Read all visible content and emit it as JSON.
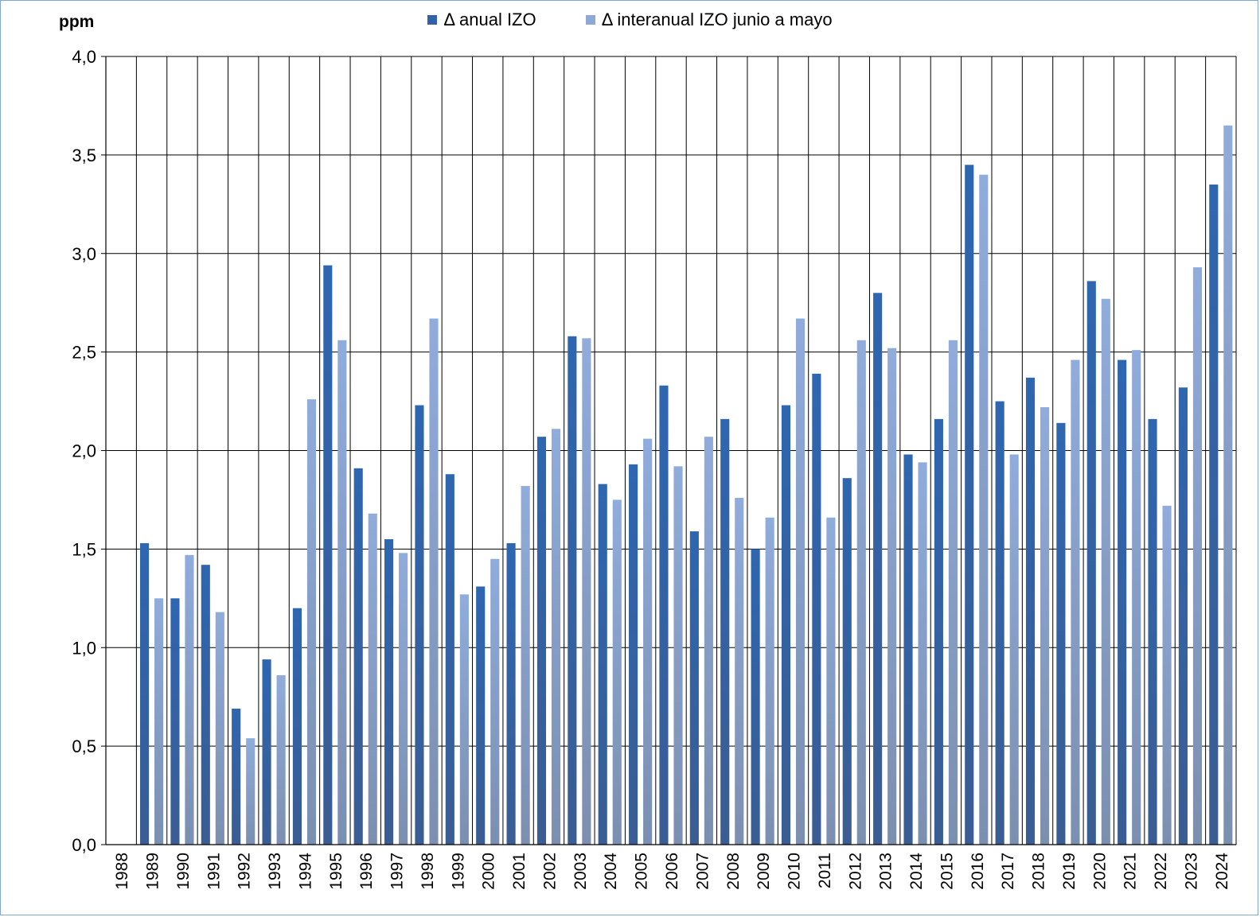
{
  "chart_data": {
    "type": "bar",
    "ylabel": "ppm",
    "ylim": [
      0,
      4
    ],
    "yticks": [
      "0,0",
      "0,5",
      "1,0",
      "1,5",
      "2,0",
      "2,5",
      "3,0",
      "3,5",
      "4,0"
    ],
    "categories": [
      "1988",
      "1989",
      "1990",
      "1991",
      "1992",
      "1993",
      "1994",
      "1995",
      "1996",
      "1997",
      "1998",
      "1999",
      "2000",
      "2001",
      "2002",
      "2003",
      "2004",
      "2005",
      "2006",
      "2007",
      "2008",
      "2009",
      "2010",
      "2011",
      "2012",
      "2013",
      "2014",
      "2015",
      "2016",
      "2017",
      "2018",
      "2019",
      "2020",
      "2021",
      "2022",
      "2023",
      "2024"
    ],
    "series": [
      {
        "name": "Δ anual IZO",
        "color": "#2f62a8",
        "values": [
          0,
          1.53,
          1.25,
          1.42,
          0.69,
          0.94,
          1.2,
          2.94,
          1.91,
          1.55,
          2.23,
          1.88,
          1.31,
          1.53,
          2.07,
          2.58,
          1.83,
          1.93,
          2.33,
          1.59,
          2.16,
          1.5,
          2.23,
          2.39,
          1.86,
          2.8,
          1.98,
          2.16,
          3.45,
          2.25,
          2.37,
          2.14,
          2.86,
          2.46,
          2.16,
          2.32,
          3.35
        ]
      },
      {
        "name": "Δ interanual IZO junio a mayo",
        "color": "#8fa9d6",
        "values": [
          0,
          1.25,
          1.47,
          1.18,
          0.54,
          0.86,
          2.26,
          2.56,
          1.68,
          1.48,
          2.67,
          1.27,
          1.45,
          1.82,
          2.11,
          2.57,
          1.75,
          2.06,
          1.92,
          2.07,
          1.76,
          1.66,
          2.67,
          1.66,
          2.56,
          2.52,
          1.94,
          2.56,
          3.4,
          1.98,
          2.22,
          2.46,
          2.77,
          2.51,
          1.72,
          2.93,
          3.65
        ]
      }
    ],
    "grid": true,
    "legend_position": "top-center"
  }
}
